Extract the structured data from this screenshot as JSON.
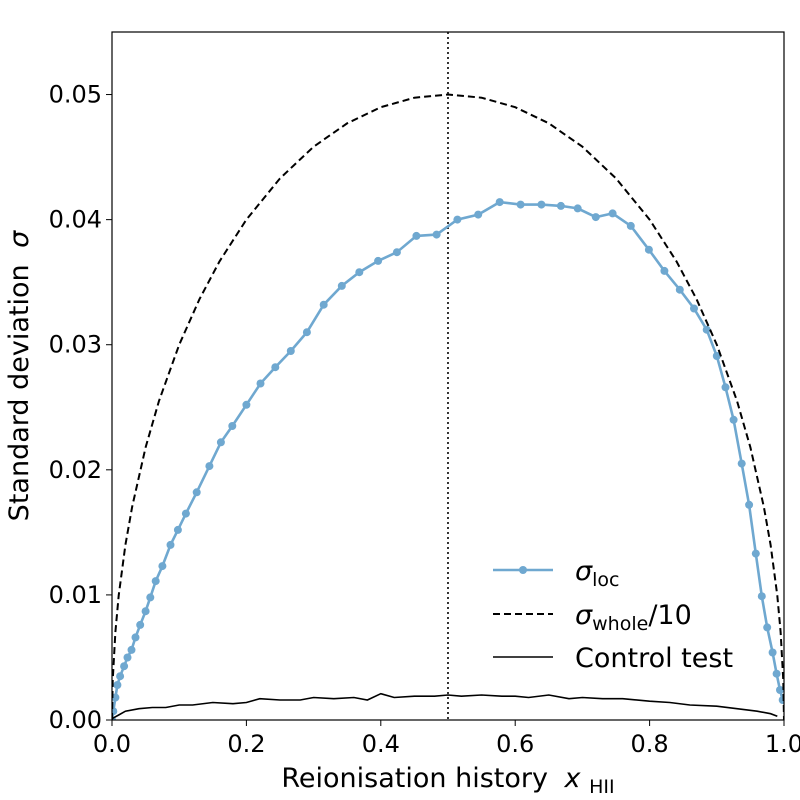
{
  "chart_data": {
    "type": "line",
    "xlabel": "Reionisation history",
    "xlabel_symbol": "x",
    "xlabel_subscript": "HII",
    "ylabel": "Standard deviation",
    "ylabel_symbol": "σ",
    "xlim": [
      0.0,
      1.0
    ],
    "ylim": [
      0.0,
      0.055
    ],
    "xticks": [
      "0.0",
      "0.2",
      "0.4",
      "0.6",
      "0.8",
      "1.0"
    ],
    "yticks": [
      "0.00",
      "0.01",
      "0.02",
      "0.03",
      "0.04",
      "0.05"
    ],
    "grid": false,
    "legend_position": "lower-right",
    "vline_x": 0.5,
    "series": [
      {
        "name": "σ_loc",
        "legend_symbol": "σ",
        "legend_subscript": "loc",
        "legend_suffix": "",
        "style": "solid-markers",
        "color": "#6fa8d0",
        "x": [
          0.0,
          0.002,
          0.005,
          0.008,
          0.012,
          0.018,
          0.023,
          0.029,
          0.035,
          0.042,
          0.05,
          0.057,
          0.065,
          0.075,
          0.087,
          0.098,
          0.11,
          0.126,
          0.145,
          0.162,
          0.179,
          0.2,
          0.221,
          0.243,
          0.266,
          0.29,
          0.315,
          0.342,
          0.368,
          0.396,
          0.424,
          0.453,
          0.483,
          0.514,
          0.545,
          0.577,
          0.608,
          0.639,
          0.668,
          0.693,
          0.72,
          0.745,
          0.772,
          0.799,
          0.822,
          0.845,
          0.866,
          0.885,
          0.9,
          0.913,
          0.925,
          0.937,
          0.948,
          0.958,
          0.967,
          0.975,
          0.983,
          0.989,
          0.994,
          0.998
        ],
        "y": [
          0.0,
          0.0007,
          0.0018,
          0.0028,
          0.0035,
          0.0043,
          0.005,
          0.0056,
          0.0066,
          0.0076,
          0.0087,
          0.0098,
          0.0111,
          0.0123,
          0.014,
          0.0152,
          0.0165,
          0.0182,
          0.0203,
          0.0222,
          0.0235,
          0.0252,
          0.0269,
          0.0282,
          0.0295,
          0.031,
          0.0332,
          0.0347,
          0.0358,
          0.0367,
          0.0374,
          0.0387,
          0.0388,
          0.04,
          0.0404,
          0.0414,
          0.0412,
          0.0412,
          0.0411,
          0.0409,
          0.0402,
          0.0405,
          0.0395,
          0.0376,
          0.0359,
          0.0344,
          0.0329,
          0.0312,
          0.0291,
          0.0266,
          0.024,
          0.0205,
          0.0172,
          0.0133,
          0.0099,
          0.0074,
          0.0054,
          0.0037,
          0.0024,
          0.0016
        ]
      },
      {
        "name": "σ_whole/10",
        "legend_symbol": "σ",
        "legend_subscript": "whole",
        "legend_suffix": "/10",
        "style": "dashed",
        "color": "#000000",
        "formula_note": "sqrt(x(1-x))/10",
        "x": [
          0.0,
          0.001,
          0.005,
          0.01,
          0.02,
          0.03,
          0.05,
          0.07,
          0.1,
          0.13,
          0.16,
          0.2,
          0.25,
          0.3,
          0.35,
          0.4,
          0.45,
          0.5,
          0.55,
          0.6,
          0.65,
          0.7,
          0.75,
          0.8,
          0.84,
          0.87,
          0.9,
          0.93,
          0.95,
          0.97,
          0.98,
          0.99,
          0.995,
          0.999,
          1.0
        ],
        "y": [
          0.0,
          0.00316,
          0.00705,
          0.00995,
          0.014,
          0.01706,
          0.02179,
          0.02551,
          0.03,
          0.03363,
          0.03666,
          0.04,
          0.0433,
          0.04583,
          0.0477,
          0.04899,
          0.04975,
          0.05,
          0.04975,
          0.04899,
          0.0477,
          0.04583,
          0.0433,
          0.04,
          0.03666,
          0.03363,
          0.03,
          0.02551,
          0.02179,
          0.01706,
          0.014,
          0.00995,
          0.00705,
          0.00316,
          0.0
        ]
      },
      {
        "name": "Control test",
        "legend_symbol": "",
        "legend_subscript": "",
        "legend_suffix": "Control test",
        "style": "solid",
        "color": "#000000",
        "x": [
          0.0,
          0.01,
          0.02,
          0.04,
          0.06,
          0.08,
          0.1,
          0.12,
          0.15,
          0.18,
          0.2,
          0.22,
          0.25,
          0.28,
          0.3,
          0.33,
          0.36,
          0.38,
          0.4,
          0.42,
          0.45,
          0.48,
          0.5,
          0.52,
          0.55,
          0.58,
          0.6,
          0.62,
          0.65,
          0.68,
          0.7,
          0.73,
          0.76,
          0.8,
          0.83,
          0.86,
          0.9,
          0.93,
          0.96,
          0.98,
          0.99
        ],
        "y": [
          0.0001,
          0.0004,
          0.0007,
          0.0009,
          0.001,
          0.001,
          0.0012,
          0.0012,
          0.0014,
          0.0013,
          0.0014,
          0.0017,
          0.0016,
          0.0016,
          0.0018,
          0.0017,
          0.0018,
          0.0016,
          0.0021,
          0.0018,
          0.0019,
          0.0019,
          0.002,
          0.0019,
          0.002,
          0.0019,
          0.0019,
          0.0018,
          0.002,
          0.0017,
          0.0018,
          0.0017,
          0.0017,
          0.0015,
          0.0014,
          0.0012,
          0.0011,
          0.0009,
          0.0007,
          0.0005,
          0.0003
        ]
      }
    ]
  }
}
